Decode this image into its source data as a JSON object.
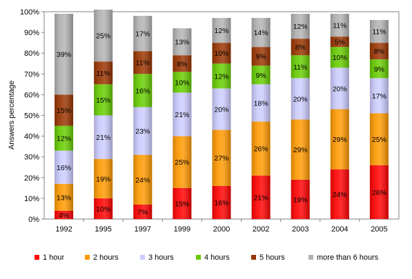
{
  "chart_data": {
    "type": "bar",
    "stacked": true,
    "title": "",
    "xlabel": "",
    "ylabel": "Answers percentage",
    "ylim": [
      0,
      100
    ],
    "yticks": [
      "0%",
      "10%",
      "20%",
      "30%",
      "40%",
      "50%",
      "60%",
      "70%",
      "80%",
      "90%",
      "100%"
    ],
    "grid": false,
    "legend_position": "bottom",
    "categories": [
      "1992",
      "1995",
      "1997",
      "1999",
      "2000",
      "2002",
      "2003",
      "2004",
      "2005"
    ],
    "series": [
      {
        "name": "1 hour",
        "color": "#ff0000",
        "values": [
          4,
          10,
          7,
          15,
          16,
          21,
          19,
          24,
          26
        ],
        "labels": [
          "4%",
          "10%",
          "7%",
          "15%",
          "16%",
          "21%",
          "19%",
          "24%",
          "26%"
        ]
      },
      {
        "name": "2 hours",
        "color": "#ff9900",
        "values": [
          13,
          19,
          24,
          25,
          27,
          26,
          29,
          29,
          25
        ],
        "labels": [
          "13%",
          "19%",
          "24%",
          "25%",
          "27%",
          "26%",
          "29%",
          "29%",
          "25%"
        ]
      },
      {
        "name": "3 hours",
        "color": "#ccccff",
        "values": [
          16,
          21,
          23,
          21,
          20,
          18,
          20,
          20,
          17
        ],
        "labels": [
          "16%",
          "21%",
          "23%",
          "21%",
          "20%",
          "18%",
          "20%",
          "20%",
          "17%"
        ]
      },
      {
        "name": "4 hours",
        "color": "#66cc00",
        "values": [
          12,
          15,
          16,
          10,
          12,
          9,
          11,
          10,
          9
        ],
        "labels": [
          "12%",
          "15%",
          "16%",
          "10%",
          "12%",
          "9%",
          "11%",
          "10%",
          "9%"
        ]
      },
      {
        "name": "5 hours",
        "color": "#993300",
        "values": [
          15,
          11,
          11,
          8,
          10,
          9,
          8,
          5,
          8
        ],
        "labels": [
          "15%",
          "11%",
          "11%",
          "8%",
          "10%",
          "9%",
          "8%",
          "5%",
          "8%"
        ]
      },
      {
        "name": "more than 6 hours",
        "color": "#b2b2b2",
        "values": [
          39,
          25,
          17,
          13,
          12,
          14,
          12,
          11,
          11
        ],
        "labels": [
          "39%",
          "25%",
          "17%",
          "13%",
          "12%",
          "14%",
          "12%",
          "11%",
          "11%"
        ]
      }
    ]
  }
}
